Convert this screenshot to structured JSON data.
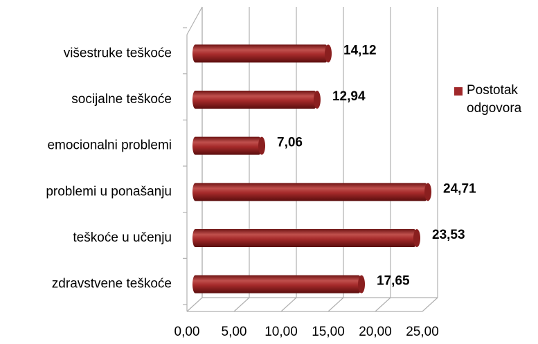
{
  "chart_data": {
    "type": "bar",
    "orientation": "horizontal",
    "categories": [
      "višestruke teškoće",
      "socijalne teškoće",
      "emocionalni problemi",
      "problemi u ponašanju",
      "teškoće u učenju",
      "zdravstvene teškoće"
    ],
    "series": [
      {
        "name": "Postotak odgovora",
        "color": "#a0282a",
        "values": [
          14.12,
          12.94,
          7.06,
          24.71,
          23.53,
          17.65
        ],
        "value_labels": [
          "14,12",
          "12,94",
          "7,06",
          "24,71",
          "23,53",
          "17,65"
        ]
      }
    ],
    "xlim": [
      0,
      25
    ],
    "xticks": [
      {
        "value": 0,
        "label": "0,00"
      },
      {
        "value": 5,
        "label": "5,00"
      },
      {
        "value": 10,
        "label": "10,00"
      },
      {
        "value": 15,
        "label": "15,00"
      },
      {
        "value": 20,
        "label": "20,00"
      },
      {
        "value": 25,
        "label": "25,00"
      }
    ],
    "grid": true,
    "legend": "right"
  }
}
